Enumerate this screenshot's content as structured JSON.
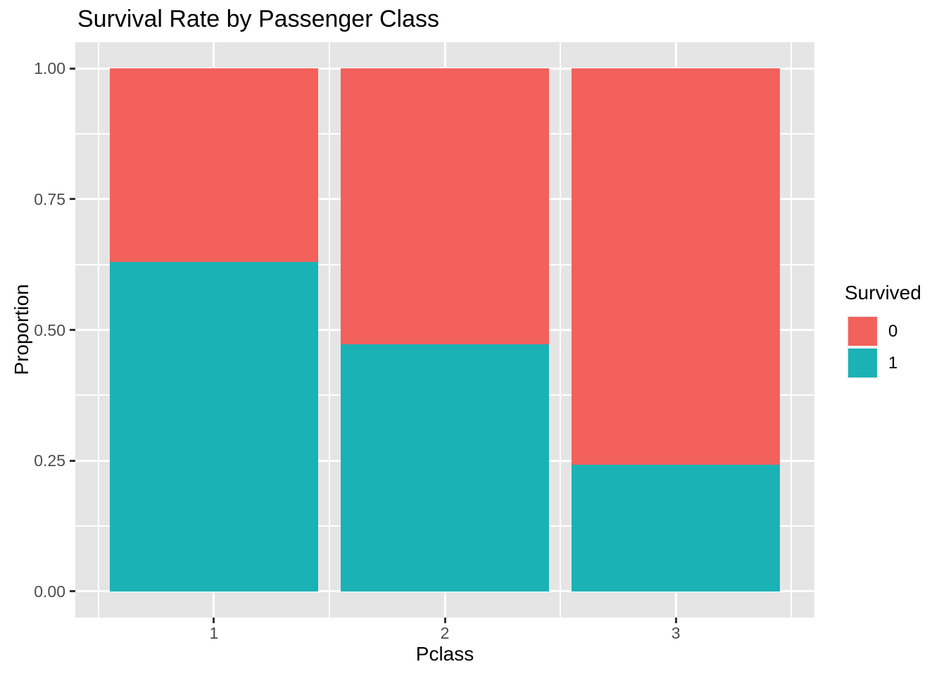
{
  "chart_data": {
    "type": "bar",
    "stacked": true,
    "normalized": true,
    "title": "Survival Rate by Passenger Class",
    "xlabel": "Pclass",
    "ylabel": "Proportion",
    "categories": [
      "1",
      "2",
      "3"
    ],
    "series": [
      {
        "name": "1",
        "color": "#1AB2B5",
        "values": [
          0.63,
          0.473,
          0.242
        ]
      },
      {
        "name": "0",
        "color": "#F2615C",
        "values": [
          0.37,
          0.527,
          0.758
        ]
      }
    ],
    "stack_order_bottom_to_top": [
      "1",
      "0"
    ],
    "x_tick_labels": [
      "1",
      "2",
      "3"
    ],
    "y_tick_labels": [
      "0.00",
      "0.25",
      "0.50",
      "0.75",
      "1.00"
    ],
    "y_tick_values": [
      0.0,
      0.25,
      0.5,
      0.75,
      1.0
    ],
    "y_minor_values": [
      0.125,
      0.375,
      0.625,
      0.875
    ],
    "x_major_values": [
      1,
      2,
      3
    ],
    "x_minor_values": [
      0.5,
      1.5,
      2.5,
      3.5
    ],
    "x_range": [
      0.4,
      3.6
    ],
    "y_range": [
      -0.05,
      1.05
    ],
    "bar_width": 0.9,
    "legend": {
      "title": "Survived",
      "position": "right",
      "entries": [
        {
          "label": "0",
          "color": "#F2615C"
        },
        {
          "label": "1",
          "color": "#1AB2B5"
        }
      ]
    },
    "style": {
      "panel_bg": "#E5E5E5",
      "grid_color": "#FFFFFF",
      "tick_mark_color": "#333333",
      "tick_label_color": "#4D4D4D",
      "text_color": "#000000"
    }
  }
}
